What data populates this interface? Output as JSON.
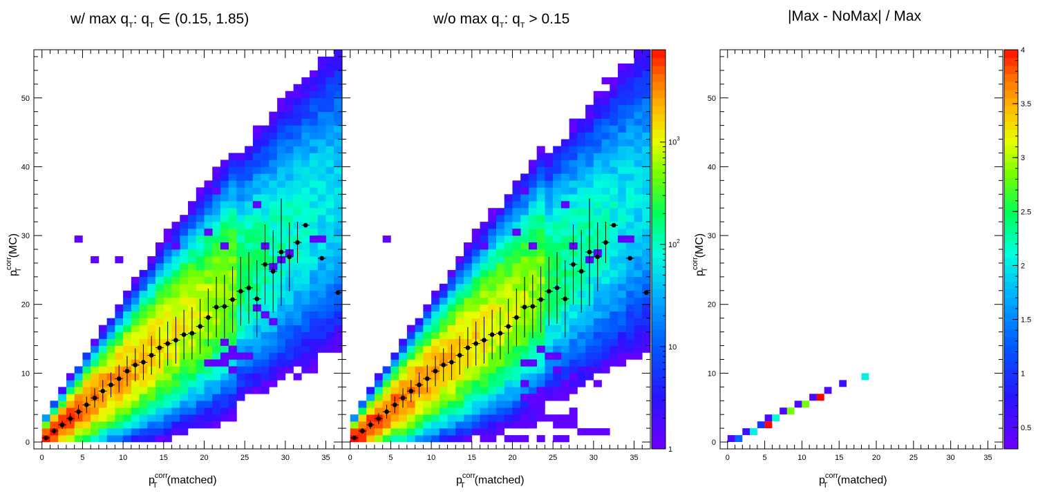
{
  "chart_data": [
    {
      "type": "heatmap",
      "title": "w/ max q_T: q_T ∈ (0.15, 1.85)",
      "title_parts": {
        "pre": "w/ max q",
        "sub1": "T",
        "mid": ": q",
        "sub2": "T",
        "post": " ∈ (0.15, 1.85)"
      },
      "xlabel_parts": {
        "main": "p",
        "sup": "corr",
        "sub": "T",
        "tail": "(matched)"
      },
      "ylabel_parts": {
        "main": "p",
        "sup": "corr",
        "sub": "T",
        "tail": "(MC)"
      },
      "xlim": [
        -1,
        37
      ],
      "ylim": [
        -1,
        57
      ],
      "x_ticks": [
        0,
        5,
        10,
        15,
        20,
        25,
        30,
        35
      ],
      "y_ticks": [
        0,
        10,
        20,
        30,
        40,
        50
      ],
      "z_scale": "log",
      "profile_points": [
        {
          "x": 0.5,
          "y": 0.6,
          "err": 0.3
        },
        {
          "x": 1.5,
          "y": 1.6,
          "err": 0.4
        },
        {
          "x": 2.5,
          "y": 2.5,
          "err": 0.6
        },
        {
          "x": 3.5,
          "y": 3.4,
          "err": 0.8
        },
        {
          "x": 4.5,
          "y": 4.4,
          "err": 1.0
        },
        {
          "x": 5.5,
          "y": 5.4,
          "err": 1.2
        },
        {
          "x": 6.5,
          "y": 6.4,
          "err": 1.4
        },
        {
          "x": 7.5,
          "y": 7.4,
          "err": 1.6
        },
        {
          "x": 8.5,
          "y": 8.3,
          "err": 1.8
        },
        {
          "x": 9.5,
          "y": 9.2,
          "err": 2.0
        },
        {
          "x": 10.5,
          "y": 10.3,
          "err": 2.2
        },
        {
          "x": 11.5,
          "y": 11.2,
          "err": 2.4
        },
        {
          "x": 12.5,
          "y": 11.6,
          "err": 2.6
        },
        {
          "x": 13.5,
          "y": 12.6,
          "err": 2.8
        },
        {
          "x": 14.5,
          "y": 13.7,
          "err": 3.0
        },
        {
          "x": 15.5,
          "y": 14.3,
          "err": 3.2
        },
        {
          "x": 16.5,
          "y": 14.8,
          "err": 3.4
        },
        {
          "x": 17.5,
          "y": 15.6,
          "err": 3.6
        },
        {
          "x": 18.5,
          "y": 15.8,
          "err": 3.8
        },
        {
          "x": 19.5,
          "y": 16.8,
          "err": 4.0
        },
        {
          "x": 20.5,
          "y": 18.1,
          "err": 4.2
        },
        {
          "x": 21.5,
          "y": 19.6,
          "err": 4.4
        },
        {
          "x": 22.5,
          "y": 19.7,
          "err": 4.6
        },
        {
          "x": 23.5,
          "y": 20.7,
          "err": 4.8
        },
        {
          "x": 24.5,
          "y": 21.9,
          "err": 5.0
        },
        {
          "x": 25.5,
          "y": 22.4,
          "err": 5.2
        },
        {
          "x": 26.5,
          "y": 20.8,
          "err": 5.6
        },
        {
          "x": 27.5,
          "y": 25.8,
          "err": 5.8
        },
        {
          "x": 28.5,
          "y": 24.8,
          "err": 6.0
        },
        {
          "x": 29.5,
          "y": 27.6,
          "err": 7.8
        },
        {
          "x": 30.5,
          "y": 26.9,
          "err": 5.0
        },
        {
          "x": 31.5,
          "y": 29.0,
          "err": 3.0
        },
        {
          "x": 32.5,
          "y": 31.5,
          "err": 0.2
        },
        {
          "x": 34.5,
          "y": 26.7,
          "err": 0.2
        },
        {
          "x": 36.5,
          "y": 21.7,
          "err": 0.2
        }
      ],
      "outlier_cells": [
        [
          21.5,
          36.5
        ],
        [
          26.5,
          34.5
        ],
        [
          15.5,
          30.5
        ],
        [
          20.5,
          30.5
        ],
        [
          33.5,
          29.5
        ],
        [
          34.5,
          29.5
        ],
        [
          4.5,
          29.5
        ],
        [
          14.5,
          28.5
        ],
        [
          16.5,
          28.5
        ],
        [
          22.5,
          28.5
        ],
        [
          27.5,
          28.5
        ],
        [
          30.5,
          27.5
        ],
        [
          6.5,
          26.5
        ],
        [
          9.5,
          26.5
        ],
        [
          29.5,
          26.5
        ],
        [
          28.5,
          25.5
        ],
        [
          26.5,
          19.5
        ],
        [
          27.5,
          18.5
        ],
        [
          28.5,
          17.5
        ],
        [
          22.5,
          14.5
        ],
        [
          23.5,
          13.5
        ],
        [
          22.5,
          12.5
        ],
        [
          23.5,
          12.5
        ],
        [
          24.5,
          12.5
        ],
        [
          25.5,
          12.5
        ],
        [
          20.5,
          11.5
        ],
        [
          21.5,
          11.5
        ],
        [
          22.5,
          11.5
        ],
        [
          23.5,
          10.5
        ]
      ]
    },
    {
      "type": "heatmap",
      "title": "w/o max q_T: q_T > 0.15",
      "title_parts": {
        "pre": "w/o max q",
        "sub1": "T",
        "mid": ": q",
        "sub2": "T",
        "post": " > 0.15"
      },
      "xlabel_parts": {
        "main": "p",
        "sup": "corr",
        "sub": "T",
        "tail": "(matched)"
      },
      "xlim": [
        -1,
        37
      ],
      "ylim": [
        -1,
        57
      ],
      "x_ticks": [
        0,
        5,
        10,
        15,
        20,
        25,
        30,
        35
      ],
      "z_scale": "log",
      "z_ticks": [
        {
          "value": 1,
          "label": "1"
        },
        {
          "value": 10,
          "label": "10"
        },
        {
          "value": 100,
          "label": "10",
          "exp": "2"
        },
        {
          "value": 1000,
          "label": "10",
          "exp": "3"
        }
      ],
      "z_range": [
        1,
        8000
      ],
      "profile_points": "same as first panel",
      "outlier_cells": [
        [
          21.5,
          36.5
        ],
        [
          26.5,
          34.5
        ],
        [
          15.5,
          30.5
        ],
        [
          20.5,
          30.5
        ],
        [
          33.5,
          29.5
        ],
        [
          34.5,
          29.5
        ],
        [
          4.5,
          29.5
        ],
        [
          14.5,
          28.5
        ],
        [
          16.5,
          28.5
        ],
        [
          22.5,
          28.5
        ],
        [
          27.5,
          28.5
        ],
        [
          30.5,
          27.5
        ],
        [
          29.5,
          26.5
        ],
        [
          23.5,
          13.5
        ],
        [
          24.5,
          12.5
        ],
        [
          25.5,
          12.5
        ],
        [
          21.5,
          11.5
        ],
        [
          22.5,
          11.5
        ],
        [
          25.5,
          10.5
        ],
        [
          27.5,
          9.5
        ],
        [
          33.5,
          11.5
        ],
        [
          21.5,
          8.5
        ],
        [
          26.5,
          8.5
        ],
        [
          23.5,
          7.5
        ],
        [
          27.5,
          7.5
        ],
        [
          21.5,
          6.5
        ],
        [
          22.5,
          6.5
        ],
        [
          23.5,
          6.5
        ],
        [
          22.5,
          5.5
        ],
        [
          23.5,
          5.5
        ],
        [
          27.5,
          4.5
        ],
        [
          21.5,
          3.5
        ],
        [
          23.5,
          3.5
        ],
        [
          24.5,
          3.5
        ],
        [
          25.5,
          3.5
        ],
        [
          26.5,
          3.5
        ],
        [
          27.5,
          3.5
        ],
        [
          20.5,
          2.5
        ],
        [
          21.5,
          2.5
        ],
        [
          22.5,
          2.5
        ],
        [
          25.5,
          2.5
        ],
        [
          26.5,
          2.5
        ],
        [
          27.5,
          2.5
        ],
        [
          28.5,
          1.5
        ],
        [
          29.5,
          1.5
        ],
        [
          30.5,
          1.5
        ],
        [
          31.5,
          1.5
        ],
        [
          16.5,
          0.5
        ],
        [
          17.5,
          0.5
        ],
        [
          19.5,
          0.5
        ],
        [
          20.5,
          0.5
        ],
        [
          21.5,
          0.5
        ],
        [
          23.5,
          0.5
        ],
        [
          25.5,
          0.5
        ],
        [
          26.5,
          0.5
        ]
      ]
    },
    {
      "type": "heatmap",
      "title": "|Max - NoMax| / Max",
      "xlabel_parts": {
        "main": "p",
        "sup": "corr",
        "sub": "T",
        "tail": "(matched)"
      },
      "ylabel_parts": {
        "main": "p",
        "sup": "corr",
        "sub": "T",
        "tail": "(MC)"
      },
      "xlim": [
        -1,
        37
      ],
      "ylim": [
        -1,
        57
      ],
      "x_ticks": [
        0,
        5,
        10,
        15,
        20,
        25,
        30,
        35
      ],
      "y_ticks": [
        0,
        10,
        20,
        30,
        40,
        50
      ],
      "z_scale": "linear",
      "z_range": [
        0.3,
        4
      ],
      "z_ticks": [
        {
          "value": 0.5,
          "label": "0.5"
        },
        {
          "value": 1,
          "label": "1"
        },
        {
          "value": 1.5,
          "label": "1.5"
        },
        {
          "value": 2,
          "label": "2"
        },
        {
          "value": 2.5,
          "label": "2.5"
        },
        {
          "value": 3,
          "label": "3"
        },
        {
          "value": 3.5,
          "label": "3.5"
        },
        {
          "value": 4,
          "label": "4"
        }
      ],
      "cells": [
        {
          "x": 0.5,
          "y": 0.5,
          "z": 0.5
        },
        {
          "x": 1.5,
          "y": 0.5,
          "z": 1.3
        },
        {
          "x": 2.5,
          "y": 1.5,
          "z": 0.6
        },
        {
          "x": 3.5,
          "y": 1.5,
          "z": 2.0
        },
        {
          "x": 4.5,
          "y": 2.5,
          "z": 1.0
        },
        {
          "x": 5.5,
          "y": 2.5,
          "z": 4.0
        },
        {
          "x": 5.5,
          "y": 3.5,
          "z": 0.5
        },
        {
          "x": 6.5,
          "y": 3.5,
          "z": 2.1
        },
        {
          "x": 7.5,
          "y": 4.5,
          "z": 0.5
        },
        {
          "x": 8.5,
          "y": 4.5,
          "z": 2.8
        },
        {
          "x": 9.5,
          "y": 5.5,
          "z": 0.5
        },
        {
          "x": 10.5,
          "y": 5.5,
          "z": 2.8
        },
        {
          "x": 11.5,
          "y": 6.5,
          "z": 0.5
        },
        {
          "x": 12.5,
          "y": 6.5,
          "z": 4.0
        },
        {
          "x": 13.5,
          "y": 7.5,
          "z": 0.5
        },
        {
          "x": 15.5,
          "y": 8.5,
          "z": 0.6
        },
        {
          "x": 18.5,
          "y": 9.5,
          "z": 2.0
        }
      ]
    }
  ]
}
